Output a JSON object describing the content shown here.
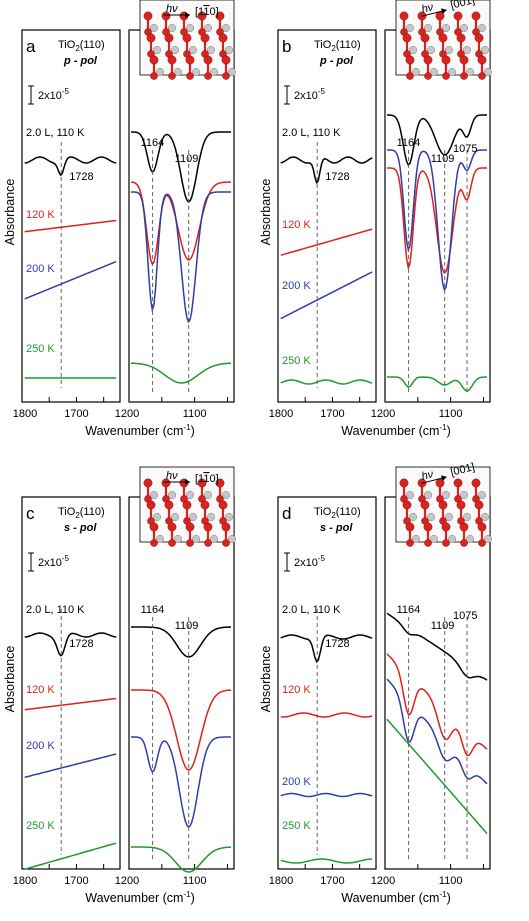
{
  "figure": {
    "y_axis_label": "Absorbance",
    "x_axis_label": "Wavenumber (cm",
    "x_axis_label_sup": "-1",
    "x_axis_label_end": ")",
    "scale_bar_label": "2x10",
    "scale_bar_sup": "-5",
    "tick_labels_left": [
      "1800",
      "1700"
    ],
    "tick_labels_right_a": [
      "1200",
      "1100"
    ],
    "tick_labels_right_b": [
      "1200",
      "1100"
    ],
    "tick_labels_right_c": [
      "1200",
      "1100"
    ],
    "tick_labels_right_d": [
      "1200",
      "1100"
    ]
  },
  "panels": [
    {
      "letter": "a",
      "title": "TiO",
      "title_sub": "2",
      "title_rest": "(110)",
      "pol": "p - pol",
      "hv": "hν",
      "direction": "[1",
      "direction_bar": "1",
      "direction_end": "0]",
      "temps": [
        "2.0 L, 110 K",
        "120 K",
        "200 K",
        "250 K"
      ],
      "peaks": [
        "1728",
        "1164",
        "1109"
      ]
    },
    {
      "letter": "b",
      "title": "TiO",
      "title_sub": "2",
      "title_rest": "(110)",
      "pol": "p - pol",
      "hv": "hν",
      "direction": "[001]",
      "temps": [
        "2.0 L, 110 K",
        "120 K",
        "200 K",
        "250 K"
      ],
      "peaks": [
        "1728",
        "1164",
        "1109",
        "1075"
      ]
    },
    {
      "letter": "c",
      "title": "TiO",
      "title_sub": "2",
      "title_rest": "(110)",
      "pol": "s - pol",
      "hv": "hν",
      "direction": "[1",
      "direction_bar": "1",
      "direction_end": "0]",
      "temps": [
        "2.0 L, 110 K",
        "120 K",
        "200 K",
        "250 K"
      ],
      "peaks": [
        "1728",
        "1164",
        "1109"
      ]
    },
    {
      "letter": "d",
      "title": "TiO",
      "title_sub": "2",
      "title_rest": "(110)",
      "pol": "s - pol",
      "hv": "hν",
      "direction": "[001]",
      "temps": [
        "2.0 L, 110 K",
        "120 K",
        "200 K",
        "250 K"
      ],
      "peaks": [
        "1728",
        "1164",
        "1109",
        "1075"
      ]
    }
  ],
  "colors": {
    "110K": "#000000",
    "120K": "#e0201c",
    "200K": "#2f3ea8",
    "250K": "#1f9a2a"
  },
  "chart_data": [
    {
      "type": "line",
      "panel": "a",
      "polarization": "p",
      "x_ranges": [
        [
          1800,
          1620
        ],
        [
          1200,
          1040
        ]
      ],
      "series": [
        {
          "name": "2.0 L, 110 K",
          "features_cm-1": [
            1728,
            1164,
            1109
          ]
        },
        {
          "name": "120 K",
          "features_cm-1": [
            1164,
            1109
          ]
        },
        {
          "name": "200 K",
          "features_cm-1": [
            1164,
            1109
          ]
        },
        {
          "name": "250 K",
          "features_cm-1": [
            1109
          ]
        }
      ]
    },
    {
      "type": "line",
      "panel": "b",
      "polarization": "p",
      "x_ranges": [
        [
          1800,
          1620
        ],
        [
          1200,
          1040
        ]
      ],
      "series": [
        {
          "name": "2.0 L, 110 K",
          "features_cm-1": [
            1728,
            1164,
            1109,
            1075
          ]
        },
        {
          "name": "120 K",
          "features_cm-1": [
            1164,
            1109,
            1075
          ]
        },
        {
          "name": "200 K",
          "features_cm-1": [
            1164,
            1109,
            1075
          ]
        },
        {
          "name": "250 K",
          "features_cm-1": [
            1164,
            1109,
            1075
          ]
        }
      ]
    },
    {
      "type": "line",
      "panel": "c",
      "polarization": "s",
      "x_ranges": [
        [
          1800,
          1620
        ],
        [
          1200,
          1040
        ]
      ],
      "series": [
        {
          "name": "2.0 L, 110 K",
          "features_cm-1": [
            1728,
            1109
          ]
        },
        {
          "name": "120 K",
          "features_cm-1": [
            1109
          ]
        },
        {
          "name": "200 K",
          "features_cm-1": [
            1164,
            1109
          ]
        },
        {
          "name": "250 K",
          "features_cm-1": [
            1109
          ]
        }
      ]
    },
    {
      "type": "line",
      "panel": "d",
      "polarization": "s",
      "x_ranges": [
        [
          1800,
          1620
        ],
        [
          1200,
          1040
        ]
      ],
      "series": [
        {
          "name": "2.0 L, 110 K",
          "features_cm-1": [
            1728,
            1164,
            1109,
            1075
          ]
        },
        {
          "name": "120 K",
          "features_cm-1": [
            1164,
            1109,
            1075
          ]
        },
        {
          "name": "200 K",
          "features_cm-1": [
            1164,
            1109,
            1075
          ]
        },
        {
          "name": "250 K",
          "features_cm-1": []
        }
      ]
    }
  ]
}
